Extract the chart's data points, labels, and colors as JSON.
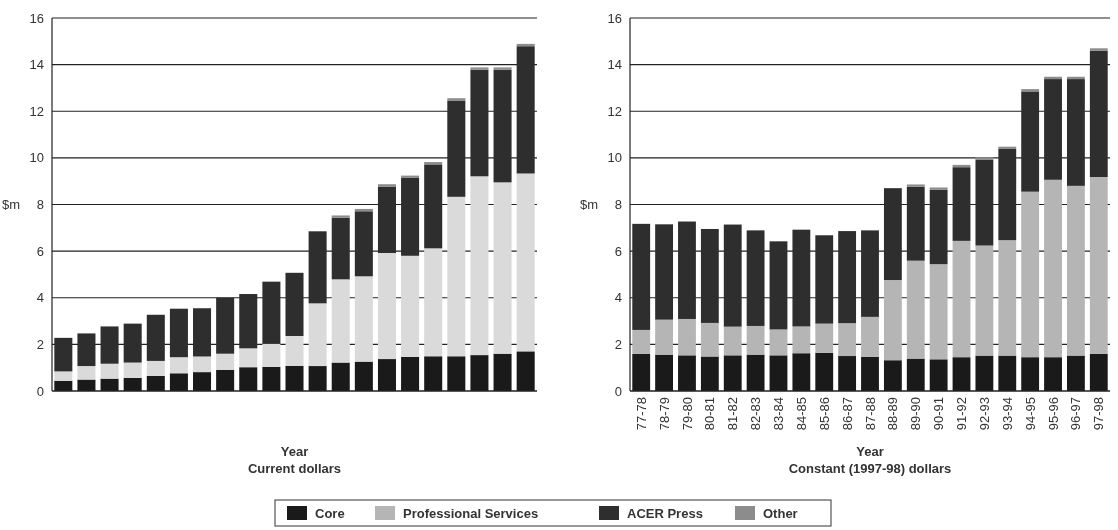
{
  "chart_data": [
    {
      "type": "bar",
      "stacked": true,
      "xlabel": "Year\nCurrent dollars",
      "ylabel": "$m",
      "categories": [
        null,
        null,
        null,
        null,
        null,
        null,
        null,
        null,
        null,
        null,
        null,
        null,
        null,
        null,
        null,
        null,
        null,
        null,
        null,
        null,
        null
      ],
      "ylim": [
        0,
        16
      ],
      "yticks": [
        0,
        2,
        4,
        6,
        8,
        10,
        12,
        14,
        16
      ],
      "grid": "y",
      "series": [
        {
          "color": "#1a1a1a",
          "values": [
            0.44,
            0.49,
            0.53,
            0.56,
            0.65,
            0.76,
            0.81,
            0.91,
            1.02,
            1.03,
            1.08,
            1.07,
            1.22,
            1.26,
            1.37,
            1.46,
            1.49,
            1.49,
            1.54,
            1.6,
            1.7
          ]
        },
        {
          "color": "#dadada",
          "values": [
            0.4,
            0.58,
            0.64,
            0.66,
            0.64,
            0.69,
            0.67,
            0.69,
            0.81,
            0.99,
            1.28,
            2.69,
            3.57,
            3.66,
            4.55,
            4.34,
            4.63,
            6.84,
            7.67,
            7.35,
            7.63
          ]
        },
        {
          "color": "#2e2e2e",
          "values": [
            1.44,
            1.4,
            1.6,
            1.67,
            1.98,
            2.08,
            2.07,
            2.4,
            2.33,
            2.67,
            2.71,
            3.09,
            2.64,
            2.79,
            2.85,
            3.34,
            3.6,
            4.13,
            4.57,
            4.83,
            5.46
          ]
        },
        {
          "color": "#8c8c8c",
          "values": [
            0,
            0,
            0,
            0,
            0,
            0,
            0,
            0,
            0,
            0,
            0,
            0,
            0.1,
            0.1,
            0.1,
            0.1,
            0.1,
            0.1,
            0.1,
            0.1,
            0.1
          ]
        }
      ]
    },
    {
      "type": "bar",
      "stacked": true,
      "xlabel": "Year\nConstant (1997-98) dollars",
      "ylabel": "$m",
      "categories": [
        "77-78",
        "78-79",
        "79-80",
        "80-81",
        "81-82",
        "82-83",
        "83-84",
        "84-85",
        "85-86",
        "86-87",
        "87-88",
        "88-89",
        "89-90",
        "90-91",
        "91-92",
        "92-93",
        "93-94",
        "94-95",
        "95-96",
        "96-97",
        "97-98"
      ],
      "ylim": [
        0,
        16
      ],
      "yticks": [
        0,
        2,
        4,
        6,
        8,
        10,
        12,
        14,
        16
      ],
      "grid": "y",
      "legend": "bottom",
      "series": [
        {
          "name": "Core",
          "color": "#1a1a1a",
          "values": [
            1.59,
            1.56,
            1.53,
            1.48,
            1.53,
            1.56,
            1.53,
            1.62,
            1.64,
            1.5,
            1.47,
            1.32,
            1.39,
            1.36,
            1.45,
            1.52,
            1.52,
            1.45,
            1.45,
            1.52,
            1.59
          ]
        },
        {
          "name": "Professional Services",
          "color": "#b5b5b5",
          "values": [
            1.03,
            1.5,
            1.56,
            1.44,
            1.23,
            1.23,
            1.11,
            1.15,
            1.25,
            1.41,
            1.71,
            3.44,
            4.2,
            4.08,
            4.99,
            4.72,
            4.95,
            7.1,
            7.61,
            7.28,
            7.59
          ]
        },
        {
          "name": "ACER Press",
          "color": "#2e2e2e",
          "values": [
            4.55,
            4.09,
            4.18,
            4.03,
            4.38,
            4.1,
            3.78,
            4.15,
            3.79,
            3.95,
            3.71,
            3.94,
            3.17,
            3.19,
            3.16,
            3.69,
            3.91,
            4.3,
            4.32,
            4.58,
            5.42
          ]
        },
        {
          "name": "Other",
          "color": "#8c8c8c",
          "values": [
            0,
            0,
            0,
            0,
            0,
            0,
            0,
            0,
            0,
            0,
            0,
            0,
            0.1,
            0.1,
            0.1,
            0.1,
            0.1,
            0.1,
            0.1,
            0.1,
            0.1
          ]
        }
      ]
    }
  ]
}
